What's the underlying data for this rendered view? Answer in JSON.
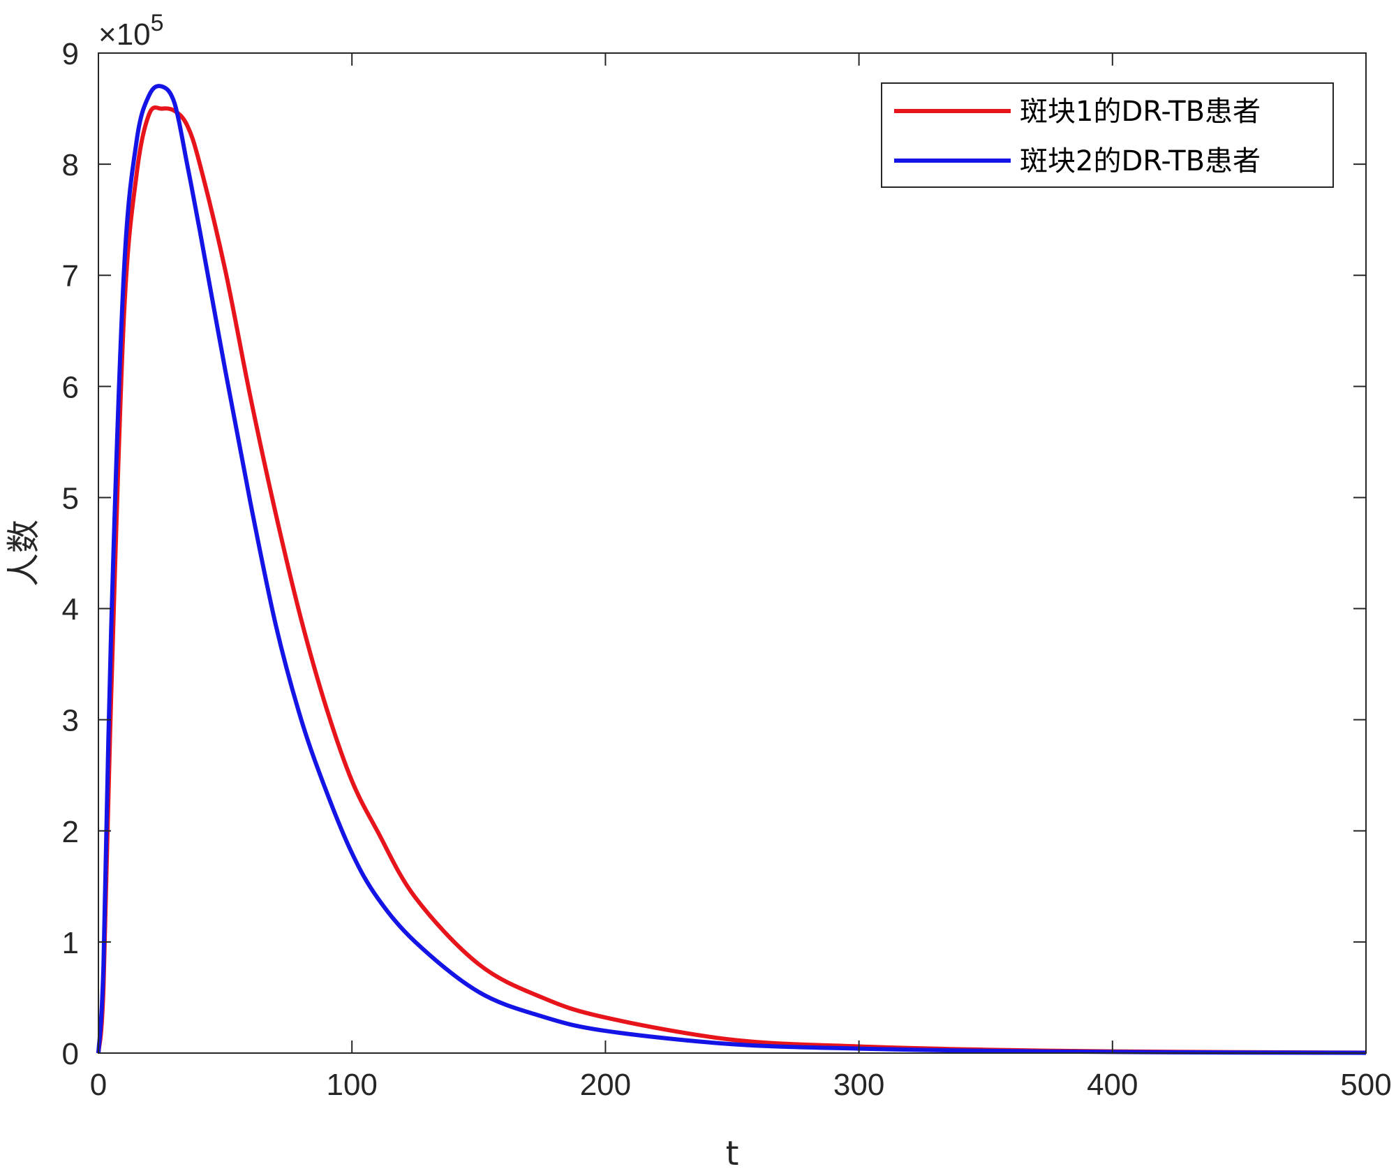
{
  "chart_data": {
    "type": "line",
    "xlabel": "t",
    "ylabel": "人数",
    "xlim": [
      0,
      500
    ],
    "ylim": [
      0,
      900000
    ],
    "y_exponent_label": "×10",
    "y_exponent_power": "5",
    "x_ticks": [
      0,
      100,
      200,
      300,
      400,
      500
    ],
    "x_tick_labels": [
      "0",
      "100",
      "200",
      "300",
      "400",
      "500"
    ],
    "y_ticks": [
      0,
      100000,
      200000,
      300000,
      400000,
      500000,
      600000,
      700000,
      800000,
      900000
    ],
    "y_tick_labels": [
      "0",
      "1",
      "2",
      "3",
      "4",
      "5",
      "6",
      "7",
      "8",
      "9"
    ],
    "grid": false,
    "legend_position": "top-right",
    "series": [
      {
        "name": "斑块1的DR-TB患者",
        "color": "#e8141b",
        "x": [
          0,
          2,
          5,
          10,
          15,
          20,
          25,
          30,
          35,
          40,
          50,
          60,
          70,
          80,
          90,
          100,
          110,
          125,
          150,
          175,
          200,
          250,
          300,
          350,
          400,
          450,
          500
        ],
        "y": [
          0,
          60000,
          320000,
          660000,
          790000,
          845000,
          850000,
          848000,
          835000,
          800000,
          705000,
          590000,
          485000,
          390000,
          310000,
          245000,
          200000,
          140000,
          80000,
          50000,
          32000,
          12000,
          6000,
          3000,
          1500,
          800,
          400
        ]
      },
      {
        "name": "斑块2的DR-TB患者",
        "color": "#1414e6",
        "x": [
          0,
          2,
          5,
          10,
          15,
          20,
          25,
          30,
          35,
          40,
          50,
          60,
          70,
          80,
          90,
          100,
          110,
          125,
          150,
          175,
          200,
          250,
          300,
          350,
          400,
          450,
          500
        ],
        "y": [
          0,
          80000,
          380000,
          700000,
          820000,
          862000,
          870000,
          855000,
          800000,
          740000,
          615000,
          495000,
          385000,
          300000,
          235000,
          180000,
          140000,
          100000,
          55000,
          33000,
          20000,
          8000,
          4000,
          2000,
          1000,
          500,
          250
        ]
      }
    ]
  }
}
